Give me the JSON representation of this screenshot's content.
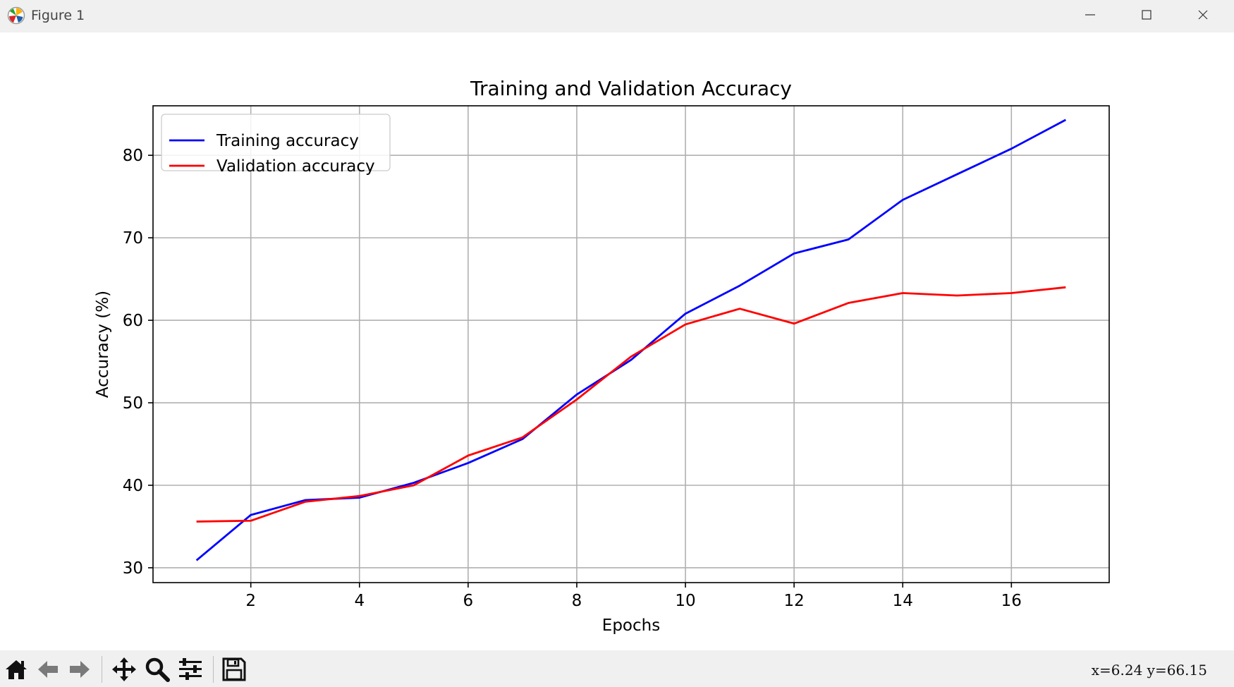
{
  "window": {
    "title": "Figure 1",
    "app_icon": "matplotlib-logo-icon",
    "controls": [
      "minimize-icon",
      "maximize-icon",
      "close-icon"
    ]
  },
  "toolbar": {
    "buttons": [
      "home-icon",
      "back-arrow-icon",
      "forward-arrow-icon",
      "pan-move-icon",
      "zoom-magnifier-icon",
      "subplots-sliders-icon",
      "save-floppy-icon"
    ],
    "coordinates": "x=6.24  y=66.15"
  },
  "chart_data": {
    "type": "line",
    "title": "Training and Validation Accuracy",
    "xlabel": "Epochs",
    "ylabel": "Accuracy (%)",
    "xlim": [
      0.2,
      17.8
    ],
    "ylim": [
      28.2,
      86.0
    ],
    "xticks": [
      2,
      4,
      6,
      8,
      10,
      12,
      14,
      16
    ],
    "yticks": [
      30,
      40,
      50,
      60,
      70,
      80
    ],
    "grid": true,
    "legend_position": "top-left",
    "x": [
      1,
      2,
      3,
      4,
      5,
      6,
      7,
      8,
      9,
      10,
      11,
      12,
      13,
      14,
      15,
      16,
      17
    ],
    "series": [
      {
        "name": "Training accuracy",
        "color": "#0000ff",
        "values": [
          30.9,
          36.4,
          38.2,
          38.5,
          40.3,
          42.7,
          45.6,
          51.0,
          55.2,
          60.8,
          64.2,
          68.1,
          69.8,
          74.6,
          77.7,
          80.8,
          84.3
        ]
      },
      {
        "name": "Validation accuracy",
        "color": "#ff0000",
        "values": [
          35.6,
          35.7,
          38.0,
          38.7,
          40.0,
          43.6,
          45.8,
          50.4,
          55.6,
          59.5,
          61.4,
          59.6,
          62.1,
          63.3,
          63.0,
          63.3,
          64.0
        ]
      }
    ]
  }
}
